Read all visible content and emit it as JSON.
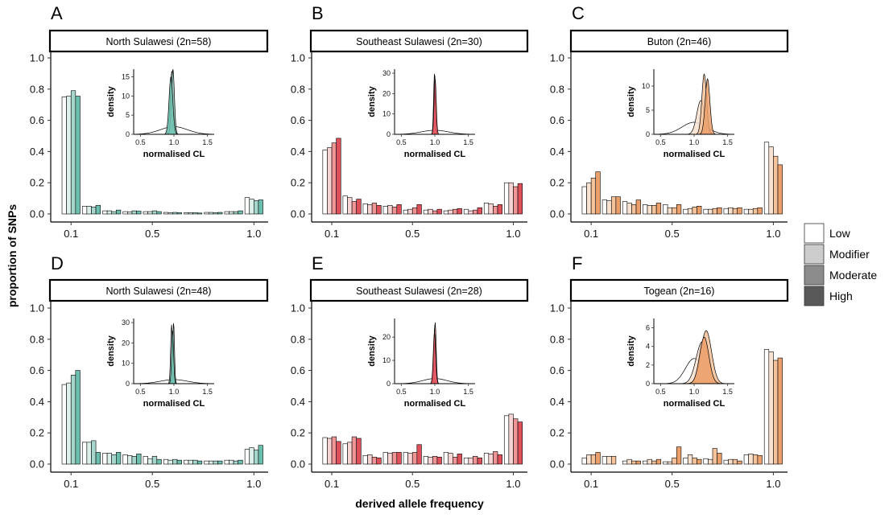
{
  "figure": {
    "ylabel": "proportion of SNPs",
    "xlabel": "derived allele frequency",
    "legend": {
      "placement": "right",
      "entries": [
        {
          "label": "Low",
          "color": "#ffffff"
        },
        {
          "label": "Modifier",
          "color": "#cccccc"
        },
        {
          "label": "Moderate",
          "color": "#8c8c8c"
        },
        {
          "label": "High",
          "color": "#595959"
        }
      ]
    },
    "panel_colors": {
      "teal": [
        "#ffffff",
        "#dcefeb",
        "#a7d7cc",
        "#6cbfae"
      ],
      "red": [
        "#ffffff",
        "#f8d5d5",
        "#f09595",
        "#e0505a"
      ],
      "orange": [
        "#ffffff",
        "#f9e2cf",
        "#f4c29b",
        "#eba06b"
      ]
    }
  },
  "chart_data": [
    {
      "type": "bar",
      "panel_letter": "A",
      "strip_title": "North Sulawesi (2n=58)",
      "palette": "teal",
      "xlim": [
        0.0,
        1.07
      ],
      "ylim": [
        0.0,
        1.0
      ],
      "x_ticks": [
        "0.1",
        "0.5",
        "1.0"
      ],
      "y_ticks": [
        "0.0",
        "0.2",
        "0.4",
        "0.6",
        "0.8",
        "1.0"
      ],
      "series_names": [
        "Low",
        "Modifier",
        "Moderate",
        "High"
      ],
      "bins": [
        {
          "x": 0.1,
          "values": [
            0.75,
            0.755,
            0.79,
            0.755
          ]
        },
        {
          "x": 0.2,
          "values": [
            0.05,
            0.05,
            0.045,
            0.055
          ]
        },
        {
          "x": 0.3,
          "values": [
            0.02,
            0.02,
            0.015,
            0.025
          ]
        },
        {
          "x": 0.4,
          "values": [
            0.015,
            0.012,
            0.02,
            0.018
          ]
        },
        {
          "x": 0.5,
          "values": [
            0.015,
            0.015,
            0.02,
            0.015
          ]
        },
        {
          "x": 0.6,
          "values": [
            0.01,
            0.008,
            0.01,
            0.008
          ]
        },
        {
          "x": 0.7,
          "values": [
            0.008,
            0.008,
            0.008,
            0.006
          ]
        },
        {
          "x": 0.8,
          "values": [
            0.01,
            0.01,
            0.008,
            0.01
          ]
        },
        {
          "x": 0.9,
          "values": [
            0.015,
            0.015,
            0.015,
            0.02
          ]
        },
        {
          "x": 1.0,
          "values": [
            0.105,
            0.095,
            0.085,
            0.09
          ]
        }
      ],
      "inset": {
        "xlabel": "normalised CL",
        "ylabel": "density",
        "xlim": [
          0.4,
          1.6
        ],
        "ylim": [
          0,
          17
        ],
        "x_ticks": [
          "0.5",
          "1.0",
          "1.5"
        ],
        "y_ticks": [
          "0",
          "5",
          "10",
          "15"
        ],
        "curves": [
          {
            "mean": 1.0,
            "sd": 0.2,
            "peak": 2.0
          },
          {
            "mean": 0.97,
            "sd": 0.025,
            "peak": 16.5
          },
          {
            "mean": 0.985,
            "sd": 0.022,
            "peak": 17.0
          },
          {
            "mean": 0.955,
            "sd": 0.028,
            "peak": 15.0
          }
        ]
      }
    },
    {
      "type": "bar",
      "panel_letter": "B",
      "strip_title": "Southeast Sulawesi (2n=30)",
      "palette": "red",
      "xlim": [
        0.0,
        1.07
      ],
      "ylim": [
        0.0,
        1.0
      ],
      "x_ticks": [
        "0.1",
        "0.5",
        "1.0"
      ],
      "y_ticks": [
        "0.0",
        "0.2",
        "0.4",
        "0.6",
        "0.8",
        "1.0"
      ],
      "series_names": [
        "Low",
        "Modifier",
        "Moderate",
        "High"
      ],
      "bins": [
        {
          "x": 0.1,
          "values": [
            0.41,
            0.425,
            0.455,
            0.485
          ]
        },
        {
          "x": 0.2,
          "values": [
            0.115,
            0.105,
            0.08,
            0.095
          ]
        },
        {
          "x": 0.3,
          "values": [
            0.065,
            0.06,
            0.07,
            0.055
          ]
        },
        {
          "x": 0.4,
          "values": [
            0.05,
            0.055,
            0.045,
            0.06
          ]
        },
        {
          "x": 0.5,
          "values": [
            0.025,
            0.03,
            0.04,
            0.06
          ]
        },
        {
          "x": 0.6,
          "values": [
            0.025,
            0.03,
            0.02,
            0.03
          ]
        },
        {
          "x": 0.7,
          "values": [
            0.02,
            0.025,
            0.03,
            0.035
          ]
        },
        {
          "x": 0.8,
          "values": [
            0.03,
            0.02,
            0.025,
            0.04
          ]
        },
        {
          "x": 0.9,
          "values": [
            0.07,
            0.065,
            0.05,
            0.06
          ]
        },
        {
          "x": 1.0,
          "values": [
            0.2,
            0.2,
            0.175,
            0.195
          ]
        }
      ],
      "inset": {
        "xlabel": "normalised CL",
        "ylabel": "density",
        "xlim": [
          0.4,
          1.6
        ],
        "ylim": [
          0,
          32
        ],
        "x_ticks": [
          "0.5",
          "1.0",
          "1.5"
        ],
        "y_ticks": [
          "0",
          "10",
          "20",
          "30"
        ],
        "curves": [
          {
            "mean": 1.0,
            "sd": 0.2,
            "peak": 2.0
          },
          {
            "mean": 1.0,
            "sd": 0.014,
            "peak": 29.0
          },
          {
            "mean": 0.995,
            "sd": 0.013,
            "peak": 30.0
          },
          {
            "mean": 1.005,
            "sd": 0.016,
            "peak": 27.0
          }
        ]
      }
    },
    {
      "type": "bar",
      "panel_letter": "C",
      "strip_title": "Buton (2n=46)",
      "palette": "orange",
      "xlim": [
        0.0,
        1.07
      ],
      "ylim": [
        0.0,
        1.0
      ],
      "x_ticks": [
        "0.1",
        "0.5",
        "1.0"
      ],
      "y_ticks": [
        "0.0",
        "0.2",
        "0.4",
        "0.6",
        "0.8",
        "1.0"
      ],
      "series_names": [
        "Low",
        "Modifier",
        "Moderate",
        "High"
      ],
      "bins": [
        {
          "x": 0.1,
          "values": [
            0.175,
            0.2,
            0.23,
            0.27
          ]
        },
        {
          "x": 0.2,
          "values": [
            0.09,
            0.085,
            0.11,
            0.11
          ]
        },
        {
          "x": 0.3,
          "values": [
            0.08,
            0.07,
            0.06,
            0.09
          ]
        },
        {
          "x": 0.4,
          "values": [
            0.06,
            0.055,
            0.055,
            0.07
          ]
        },
        {
          "x": 0.5,
          "values": [
            0.06,
            0.04,
            0.04,
            0.06
          ]
        },
        {
          "x": 0.6,
          "values": [
            0.03,
            0.035,
            0.045,
            0.05
          ]
        },
        {
          "x": 0.7,
          "values": [
            0.03,
            0.03,
            0.035,
            0.04
          ]
        },
        {
          "x": 0.8,
          "values": [
            0.035,
            0.04,
            0.035,
            0.04
          ]
        },
        {
          "x": 0.9,
          "values": [
            0.03,
            0.03,
            0.035,
            0.04
          ]
        },
        {
          "x": 1.0,
          "values": [
            0.46,
            0.43,
            0.37,
            0.315
          ]
        }
      ],
      "inset": {
        "xlabel": "normalised CL",
        "ylabel": "density",
        "xlim": [
          0.4,
          1.6
        ],
        "ylim": [
          0,
          13.5
        ],
        "x_ticks": [
          "0.5",
          "1.0",
          "1.5"
        ],
        "y_ticks": [
          "0",
          "5",
          "10"
        ],
        "curves": [
          {
            "mean": 1.0,
            "sd": 0.18,
            "peak": 2.5
          },
          {
            "mean": 1.1,
            "sd": 0.06,
            "peak": 7.0
          },
          {
            "mean": 1.15,
            "sd": 0.035,
            "peak": 12.5
          },
          {
            "mean": 1.2,
            "sd": 0.035,
            "peak": 11.5
          }
        ]
      }
    },
    {
      "type": "bar",
      "panel_letter": "D",
      "strip_title": "North Sulawesi (2n=48)",
      "palette": "teal",
      "xlim": [
        0.0,
        1.07
      ],
      "ylim": [
        0.0,
        1.0
      ],
      "x_ticks": [
        "0.1",
        "0.5",
        "1.0"
      ],
      "y_ticks": [
        "0.0",
        "0.2",
        "0.4",
        "0.6",
        "0.8",
        "1.0"
      ],
      "series_names": [
        "Low",
        "Modifier",
        "Moderate",
        "High"
      ],
      "bins": [
        {
          "x": 0.1,
          "values": [
            0.51,
            0.52,
            0.57,
            0.6
          ]
        },
        {
          "x": 0.2,
          "values": [
            0.14,
            0.14,
            0.15,
            0.075
          ]
        },
        {
          "x": 0.3,
          "values": [
            0.07,
            0.07,
            0.06,
            0.075
          ]
        },
        {
          "x": 0.4,
          "values": [
            0.06,
            0.055,
            0.05,
            0.065
          ]
        },
        {
          "x": 0.5,
          "values": [
            0.05,
            0.035,
            0.05,
            0.03
          ]
        },
        {
          "x": 0.6,
          "values": [
            0.03,
            0.025,
            0.03,
            0.025
          ]
        },
        {
          "x": 0.7,
          "values": [
            0.025,
            0.025,
            0.025,
            0.02
          ]
        },
        {
          "x": 0.8,
          "values": [
            0.02,
            0.02,
            0.02,
            0.02
          ]
        },
        {
          "x": 0.9,
          "values": [
            0.025,
            0.025,
            0.02,
            0.025
          ]
        },
        {
          "x": 1.0,
          "values": [
            0.095,
            0.105,
            0.09,
            0.12
          ]
        }
      ],
      "inset": {
        "xlabel": "normalised CL",
        "ylabel": "density",
        "xlim": [
          0.4,
          1.6
        ],
        "ylim": [
          0,
          32
        ],
        "x_ticks": [
          "0.5",
          "1.0",
          "1.5"
        ],
        "y_ticks": [
          "0",
          "10",
          "20",
          "30"
        ],
        "curves": [
          {
            "mean": 1.0,
            "sd": 0.2,
            "peak": 2.0
          },
          {
            "mean": 0.965,
            "sd": 0.014,
            "peak": 29.0
          },
          {
            "mean": 0.995,
            "sd": 0.013,
            "peak": 30.0
          },
          {
            "mean": 0.98,
            "sd": 0.015,
            "peak": 26.0
          }
        ]
      }
    },
    {
      "type": "bar",
      "panel_letter": "E",
      "strip_title": "Southeast Sulawesi (2n=28)",
      "palette": "red",
      "xlim": [
        0.0,
        1.07
      ],
      "ylim": [
        0.0,
        1.0
      ],
      "x_ticks": [
        "0.1",
        "0.5",
        "1.0"
      ],
      "y_ticks": [
        "0.0",
        "0.2",
        "0.4",
        "0.6",
        "0.8",
        "1.0"
      ],
      "series_names": [
        "Low",
        "Modifier",
        "Moderate",
        "High"
      ],
      "bins": [
        {
          "x": 0.1,
          "values": [
            0.17,
            0.165,
            0.175,
            0.145
          ]
        },
        {
          "x": 0.2,
          "values": [
            0.13,
            0.14,
            0.175,
            0.165
          ]
        },
        {
          "x": 0.3,
          "values": [
            0.055,
            0.06,
            0.045,
            0.04
          ]
        },
        {
          "x": 0.4,
          "values": [
            0.075,
            0.07,
            0.075,
            0.075
          ]
        },
        {
          "x": 0.5,
          "values": [
            0.075,
            0.07,
            0.075,
            0.125
          ]
        },
        {
          "x": 0.6,
          "values": [
            0.05,
            0.045,
            0.05,
            0.045
          ]
        },
        {
          "x": 0.7,
          "values": [
            0.075,
            0.07,
            0.045,
            0.065
          ]
        },
        {
          "x": 0.8,
          "values": [
            0.04,
            0.04,
            0.05,
            0.04
          ]
        },
        {
          "x": 0.9,
          "values": [
            0.07,
            0.065,
            0.08,
            0.06
          ]
        },
        {
          "x": 1.0,
          "values": [
            0.31,
            0.32,
            0.29,
            0.27
          ]
        }
      ],
      "inset": {
        "xlabel": "normalised CL",
        "ylabel": "density",
        "xlim": [
          0.4,
          1.6
        ],
        "ylim": [
          0,
          28
        ],
        "x_ticks": [
          "0.5",
          "1.0",
          "1.5"
        ],
        "y_ticks": [
          "0",
          "10",
          "20"
        ],
        "curves": [
          {
            "mean": 1.0,
            "sd": 0.18,
            "peak": 2.2
          },
          {
            "mean": 1.0,
            "sd": 0.016,
            "peak": 25.0
          },
          {
            "mean": 1.005,
            "sd": 0.015,
            "peak": 26.5
          },
          {
            "mean": 0.995,
            "sd": 0.018,
            "peak": 22.0
          }
        ]
      }
    },
    {
      "type": "bar",
      "panel_letter": "F",
      "strip_title": "Togean (2n=16)",
      "palette": "orange",
      "xlim": [
        0.0,
        1.07
      ],
      "ylim": [
        0.0,
        1.0
      ],
      "x_ticks": [
        "0.1",
        "0.5",
        "1.0"
      ],
      "y_ticks": [
        "0.0",
        "0.2",
        "0.4",
        "0.6",
        "0.8",
        "1.0"
      ],
      "series_names": [
        "Low",
        "Modifier",
        "Moderate",
        "High"
      ],
      "bins": [
        {
          "x": 0.1,
          "values": [
            0.04,
            0.06,
            0.06,
            0.075
          ]
        },
        {
          "x": 0.2,
          "values": [
            0.05,
            0.05,
            0.05,
            0.0
          ]
        },
        {
          "x": 0.3,
          "values": [
            0.02,
            0.03,
            0.02,
            0.02
          ]
        },
        {
          "x": 0.4,
          "values": [
            0.02,
            0.03,
            0.02,
            0.03
          ]
        },
        {
          "x": 0.5,
          "values": [
            0.015,
            0.015,
            0.04,
            0.11
          ]
        },
        {
          "x": 0.6,
          "values": [
            0.04,
            0.06,
            0.04,
            0.03
          ]
        },
        {
          "x": 0.7,
          "values": [
            0.035,
            0.03,
            0.1,
            0.07
          ]
        },
        {
          "x": 0.8,
          "values": [
            0.025,
            0.03,
            0.03,
            0.02
          ]
        },
        {
          "x": 0.9,
          "values": [
            0.06,
            0.065,
            0.06,
            0.055
          ]
        },
        {
          "x": 1.0,
          "values": [
            0.735,
            0.72,
            0.665,
            0.68
          ]
        }
      ],
      "inset": {
        "xlabel": "normalised CL",
        "ylabel": "density",
        "xlim": [
          0.4,
          1.6
        ],
        "ylim": [
          0,
          7
        ],
        "x_ticks": [
          "0.5",
          "1.0",
          "1.5"
        ],
        "y_ticks": [
          "0",
          "2",
          "4",
          "6"
        ],
        "curves": [
          {
            "mean": 1.0,
            "sd": 0.13,
            "peak": 2.7
          },
          {
            "mean": 1.12,
            "sd": 0.09,
            "peak": 4.5
          },
          {
            "mean": 1.18,
            "sd": 0.08,
            "peak": 5.7
          },
          {
            "mean": 1.15,
            "sd": 0.07,
            "peak": 5.0
          }
        ]
      }
    }
  ]
}
